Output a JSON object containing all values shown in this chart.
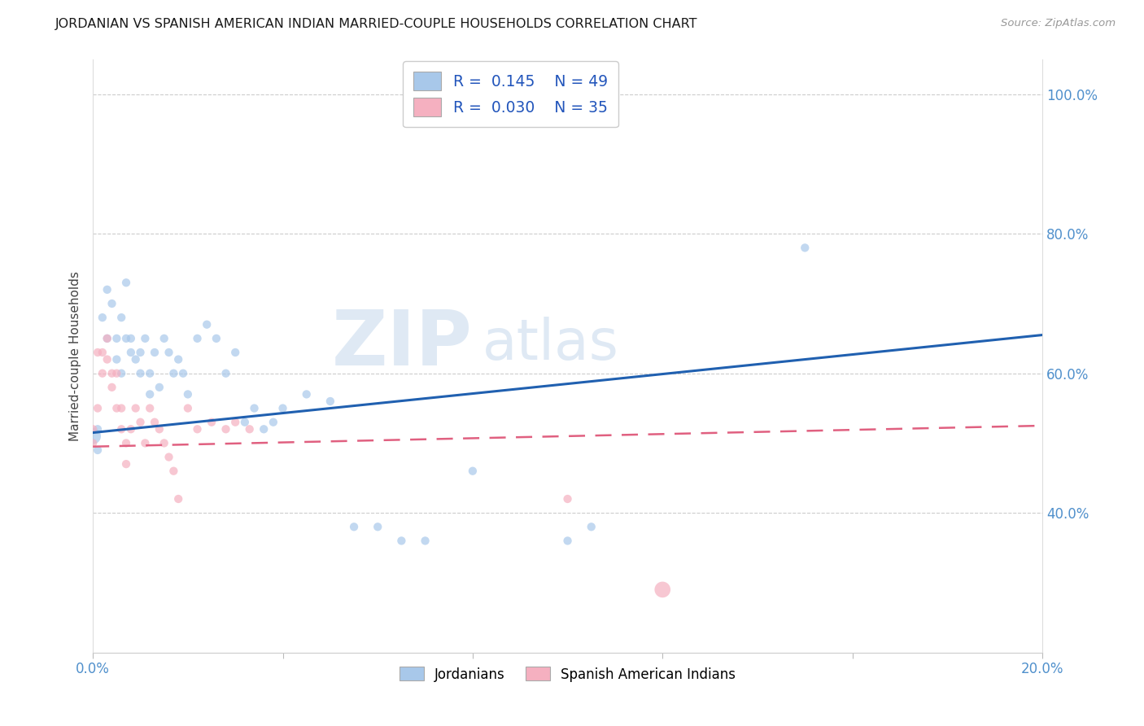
{
  "title": "JORDANIAN VS SPANISH AMERICAN INDIAN MARRIED-COUPLE HOUSEHOLDS CORRELATION CHART",
  "source": "Source: ZipAtlas.com",
  "ylabel": "Married-couple Households",
  "r1": 0.145,
  "n1": 49,
  "r2": 0.03,
  "n2": 35,
  "color_blue": "#a8c8ea",
  "color_pink": "#f5b0c0",
  "color_line_blue": "#2060b0",
  "color_line_pink": "#e06080",
  "legend_label1": "Jordanians",
  "legend_label2": "Spanish American Indians",
  "blue_points": [
    [
      0.0,
      0.51
    ],
    [
      0.001,
      0.52
    ],
    [
      0.001,
      0.49
    ],
    [
      0.002,
      0.68
    ],
    [
      0.003,
      0.72
    ],
    [
      0.003,
      0.65
    ],
    [
      0.004,
      0.7
    ],
    [
      0.005,
      0.65
    ],
    [
      0.005,
      0.62
    ],
    [
      0.006,
      0.68
    ],
    [
      0.006,
      0.6
    ],
    [
      0.007,
      0.73
    ],
    [
      0.007,
      0.65
    ],
    [
      0.008,
      0.63
    ],
    [
      0.008,
      0.65
    ],
    [
      0.009,
      0.62
    ],
    [
      0.01,
      0.6
    ],
    [
      0.01,
      0.63
    ],
    [
      0.011,
      0.65
    ],
    [
      0.012,
      0.6
    ],
    [
      0.012,
      0.57
    ],
    [
      0.013,
      0.63
    ],
    [
      0.014,
      0.58
    ],
    [
      0.015,
      0.65
    ],
    [
      0.016,
      0.63
    ],
    [
      0.017,
      0.6
    ],
    [
      0.018,
      0.62
    ],
    [
      0.019,
      0.6
    ],
    [
      0.02,
      0.57
    ],
    [
      0.022,
      0.65
    ],
    [
      0.024,
      0.67
    ],
    [
      0.026,
      0.65
    ],
    [
      0.028,
      0.6
    ],
    [
      0.03,
      0.63
    ],
    [
      0.032,
      0.53
    ],
    [
      0.034,
      0.55
    ],
    [
      0.036,
      0.52
    ],
    [
      0.038,
      0.53
    ],
    [
      0.04,
      0.55
    ],
    [
      0.045,
      0.57
    ],
    [
      0.05,
      0.56
    ],
    [
      0.055,
      0.38
    ],
    [
      0.06,
      0.38
    ],
    [
      0.065,
      0.36
    ],
    [
      0.07,
      0.36
    ],
    [
      0.08,
      0.46
    ],
    [
      0.1,
      0.36
    ],
    [
      0.105,
      0.38
    ],
    [
      0.15,
      0.78
    ]
  ],
  "pink_points": [
    [
      0.0,
      0.5
    ],
    [
      0.0,
      0.52
    ],
    [
      0.001,
      0.55
    ],
    [
      0.001,
      0.63
    ],
    [
      0.002,
      0.6
    ],
    [
      0.002,
      0.63
    ],
    [
      0.003,
      0.65
    ],
    [
      0.003,
      0.62
    ],
    [
      0.004,
      0.58
    ],
    [
      0.004,
      0.6
    ],
    [
      0.005,
      0.55
    ],
    [
      0.005,
      0.6
    ],
    [
      0.006,
      0.55
    ],
    [
      0.006,
      0.52
    ],
    [
      0.007,
      0.5
    ],
    [
      0.007,
      0.47
    ],
    [
      0.008,
      0.52
    ],
    [
      0.009,
      0.55
    ],
    [
      0.01,
      0.53
    ],
    [
      0.011,
      0.5
    ],
    [
      0.012,
      0.55
    ],
    [
      0.013,
      0.53
    ],
    [
      0.014,
      0.52
    ],
    [
      0.015,
      0.5
    ],
    [
      0.016,
      0.48
    ],
    [
      0.017,
      0.46
    ],
    [
      0.018,
      0.42
    ],
    [
      0.02,
      0.55
    ],
    [
      0.022,
      0.52
    ],
    [
      0.025,
      0.53
    ],
    [
      0.028,
      0.52
    ],
    [
      0.03,
      0.53
    ],
    [
      0.033,
      0.52
    ],
    [
      0.1,
      0.42
    ],
    [
      0.12,
      0.29
    ]
  ],
  "blue_large_idx": [],
  "pink_large_idx": [
    34
  ],
  "xlim": [
    0.0,
    0.2
  ],
  "ylim": [
    0.2,
    1.05
  ],
  "yticks": [
    0.4,
    0.6,
    0.8,
    1.0
  ],
  "xticks": [
    0.0,
    0.04,
    0.08,
    0.12,
    0.16,
    0.2
  ],
  "ytick_labels": [
    "40.0%",
    "60.0%",
    "80.0%",
    "100.0%"
  ],
  "xtick_labels": [
    "0.0%",
    "",
    "",
    "",
    "",
    "20.0%"
  ]
}
